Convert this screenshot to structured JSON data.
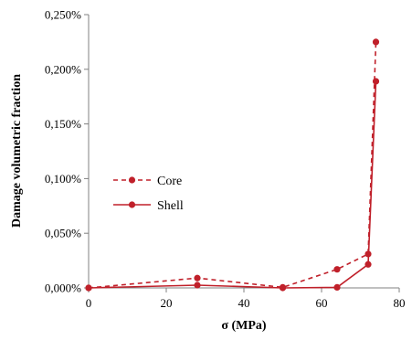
{
  "chart_data": {
    "type": "line",
    "title": "",
    "xlabel": "σ (MPa)",
    "ylabel": "Damage volumetric fraction",
    "xlim": [
      0,
      80
    ],
    "ylim": [
      0,
      0.25
    ],
    "x_ticks": [
      0,
      20,
      40,
      60,
      80
    ],
    "y_ticks": [
      0,
      0.05,
      0.1,
      0.15,
      0.2,
      0.25
    ],
    "x_tick_labels": [
      "0",
      "20",
      "40",
      "60",
      "80"
    ],
    "y_tick_labels": [
      "0,000%",
      "0,050%",
      "0,100%",
      "0,150%",
      "0,200%",
      "0,250%"
    ],
    "grid": false,
    "legend_position": "center-left",
    "series": [
      {
        "name": "Core",
        "line_style": "dashed",
        "color": "#C0202A",
        "x": [
          0,
          28,
          50,
          64,
          72,
          74
        ],
        "y": [
          0.0,
          0.009,
          0.0005,
          0.017,
          0.031,
          0.225
        ]
      },
      {
        "name": "Shell",
        "line_style": "solid",
        "color": "#C0202A",
        "x": [
          0,
          28,
          50,
          64,
          72,
          74
        ],
        "y": [
          0.0,
          0.0025,
          0.0,
          0.0005,
          0.0215,
          0.189
        ]
      }
    ]
  }
}
